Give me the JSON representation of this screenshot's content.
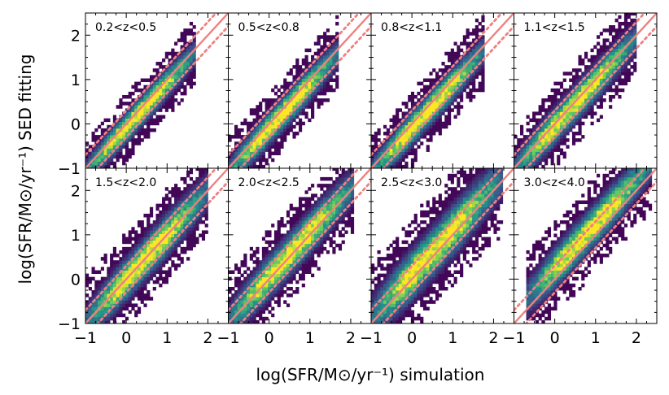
{
  "chart_data": {
    "type": "heatmap",
    "layout": "2x4 grid of 2D-histogram panels with shared axes",
    "xlabel": "log(SFR/M⊙/yr⁻¹) simulation",
    "ylabel": "log(SFR/M⊙/yr⁻¹) SED fitting",
    "xlim": [
      -1,
      2.5
    ],
    "ylim": [
      -1,
      2.5
    ],
    "xticks": [
      -1,
      0,
      1,
      2
    ],
    "yticks": [
      -1,
      0,
      1,
      2
    ],
    "x_tick_labels": [
      "−1",
      "0",
      "1",
      "2"
    ],
    "y_tick_labels": [
      "−1",
      "0",
      "1",
      "2"
    ],
    "colormap": [
      "#440154",
      "#3b528b",
      "#21918c",
      "#5ec962",
      "#fde725"
    ],
    "reference_lines": {
      "one_to_one": {
        "slope": 1,
        "intercept": 0,
        "style": "solid",
        "color": "#f08080"
      },
      "offsets": {
        "values": [
          0.3,
          -0.3
        ],
        "style": "dotted",
        "color": "#f08080"
      }
    },
    "panels": [
      {
        "label": "0.2<z<0.5",
        "x_range": [
          -1.0,
          1.7
        ],
        "offset": -0.08,
        "spread": 0.18
      },
      {
        "label": "0.5<z<0.8",
        "x_range": [
          -1.0,
          1.7
        ],
        "offset": -0.1,
        "spread": 0.2
      },
      {
        "label": "0.8<z<1.1",
        "x_range": [
          -1.0,
          1.8
        ],
        "offset": -0.1,
        "spread": 0.2
      },
      {
        "label": "1.1<z<1.5",
        "x_range": [
          -1.0,
          2.0
        ],
        "offset": -0.05,
        "spread": 0.22
      },
      {
        "label": "1.5<z<2.0",
        "x_range": [
          -1.0,
          2.0
        ],
        "offset": 0.0,
        "spread": 0.25
      },
      {
        "label": "2.0<z<2.5",
        "x_range": [
          -1.0,
          2.1
        ],
        "offset": 0.05,
        "spread": 0.25
      },
      {
        "label": "2.5<z<3.0",
        "x_range": [
          -1.0,
          2.2
        ],
        "offset": 0.1,
        "spread": 0.3
      },
      {
        "label": "3.0<z<4.0",
        "x_range": [
          -0.7,
          2.4
        ],
        "offset": 0.25,
        "spread": 0.25
      }
    ]
  }
}
